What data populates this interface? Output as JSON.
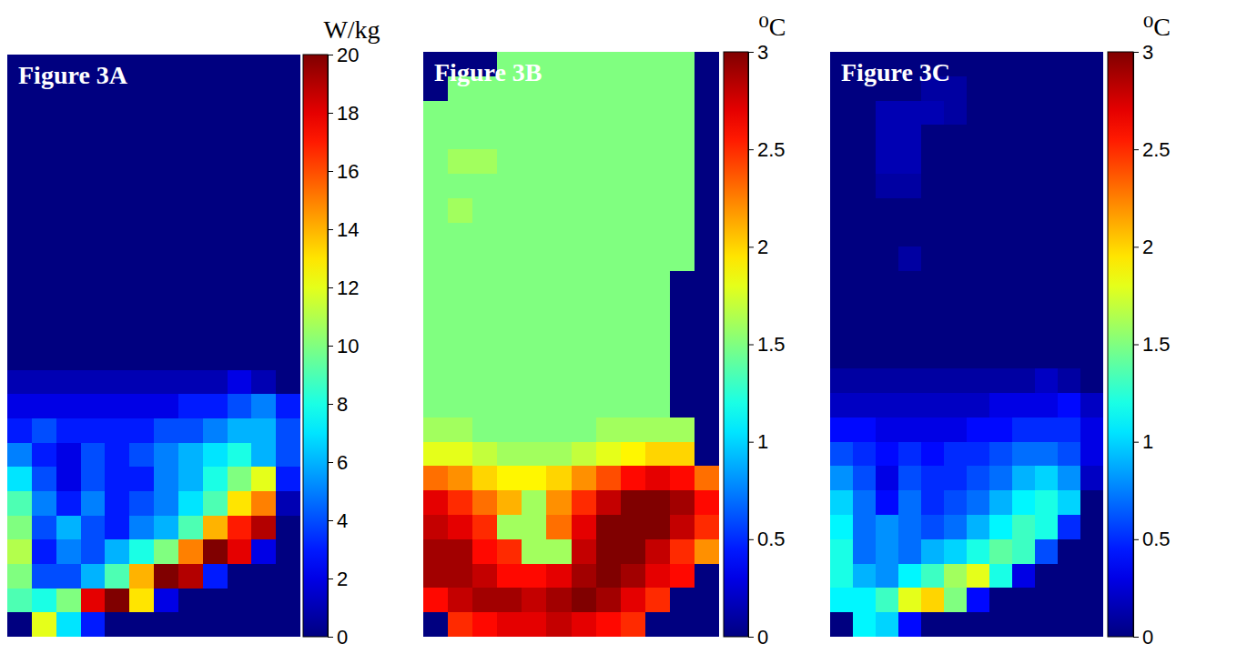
{
  "chart_data": [
    {
      "type": "heatmap",
      "title": "Figure 3A",
      "colorbar": {
        "title": "W/kg",
        "range": [
          0,
          20
        ],
        "ticks": [
          0,
          2,
          4,
          6,
          8,
          10,
          12,
          14,
          16,
          18,
          20
        ]
      },
      "cells": [
        [
          0,
          0,
          0,
          0,
          0,
          0,
          0,
          0,
          0,
          0,
          0,
          0
        ],
        [
          0,
          0,
          0,
          0,
          0,
          0,
          0,
          0,
          0,
          0,
          0,
          0
        ],
        [
          0,
          0,
          0,
          0,
          0,
          0,
          0,
          0,
          0,
          0,
          0,
          0
        ],
        [
          0,
          0,
          0,
          0,
          0,
          0,
          0,
          0,
          0,
          0,
          0,
          0
        ],
        [
          0,
          0,
          0,
          0,
          0,
          0,
          0,
          0,
          0,
          0,
          0,
          0
        ],
        [
          0,
          0,
          0,
          0,
          0,
          0,
          0,
          0,
          0,
          0,
          0,
          0
        ],
        [
          0,
          0,
          0,
          0,
          0,
          0,
          0,
          0,
          0,
          0,
          0,
          0
        ],
        [
          0,
          0,
          0,
          0,
          0,
          0,
          0,
          0,
          0,
          0,
          0,
          0
        ],
        [
          0,
          0,
          0,
          0,
          0,
          0,
          0,
          0,
          0,
          0,
          0,
          0
        ],
        [
          0,
          0,
          0,
          0,
          0,
          0,
          0,
          0,
          0,
          0,
          0,
          0
        ],
        [
          0,
          0,
          0,
          0,
          0,
          0,
          0,
          0,
          0,
          0,
          0,
          0
        ],
        [
          0,
          0,
          0,
          0,
          0,
          0,
          0,
          0,
          0,
          0,
          0,
          0
        ],
        [
          0,
          0,
          0,
          0,
          0,
          0,
          0,
          0,
          0,
          0,
          0,
          0
        ],
        [
          1,
          1,
          1,
          1,
          1,
          1,
          1,
          1,
          1,
          2,
          1,
          0
        ],
        [
          2,
          2,
          2,
          2,
          2,
          2,
          2,
          3,
          3,
          4,
          5,
          3
        ],
        [
          3,
          4,
          3,
          3,
          3,
          3,
          4,
          4,
          5,
          6,
          6,
          4
        ],
        [
          5,
          3,
          2,
          4,
          3,
          4,
          5,
          6,
          7,
          8,
          6,
          4
        ],
        [
          7,
          4,
          2,
          4,
          3,
          3,
          5,
          6,
          8,
          10,
          12,
          3
        ],
        [
          9,
          5,
          3,
          5,
          3,
          4,
          5,
          7,
          9,
          13,
          15,
          1
        ],
        [
          10,
          4,
          6,
          4,
          3,
          5,
          6,
          9,
          14,
          17,
          19,
          0
        ],
        [
          11,
          3,
          5,
          4,
          6,
          8,
          10,
          15,
          20,
          18,
          2,
          0
        ],
        [
          10,
          4,
          4,
          6,
          9,
          14,
          20,
          19,
          3,
          0,
          0,
          0
        ],
        [
          9,
          8,
          10,
          18,
          20,
          13,
          2,
          0,
          0,
          0,
          0,
          0
        ],
        [
          0,
          12,
          7,
          3,
          0,
          0,
          0,
          0,
          0,
          0,
          0,
          0
        ]
      ]
    },
    {
      "type": "heatmap",
      "title": "Figure 3B",
      "colorbar": {
        "title": "⁰C",
        "range": [
          0,
          3
        ],
        "ticks": [
          0,
          0.5,
          1,
          1.5,
          2,
          2.5,
          3
        ]
      },
      "cells": [
        [
          0,
          0,
          0,
          1.5,
          1.5,
          1.5,
          1.5,
          1.5,
          1.5,
          1.5,
          1.5,
          0
        ],
        [
          0,
          1.5,
          1.5,
          1.5,
          1.5,
          1.5,
          1.5,
          1.5,
          1.5,
          1.5,
          1.5,
          0
        ],
        [
          1.5,
          1.5,
          1.5,
          1.5,
          1.5,
          1.5,
          1.5,
          1.5,
          1.5,
          1.5,
          1.5,
          0
        ],
        [
          1.5,
          1.5,
          1.5,
          1.5,
          1.5,
          1.5,
          1.5,
          1.5,
          1.5,
          1.5,
          1.5,
          0
        ],
        [
          1.5,
          1.6,
          1.6,
          1.5,
          1.5,
          1.5,
          1.5,
          1.5,
          1.5,
          1.5,
          1.5,
          0
        ],
        [
          1.5,
          1.5,
          1.5,
          1.5,
          1.5,
          1.5,
          1.5,
          1.5,
          1.5,
          1.5,
          1.5,
          0
        ],
        [
          1.5,
          1.6,
          1.5,
          1.5,
          1.5,
          1.5,
          1.5,
          1.5,
          1.5,
          1.5,
          1.5,
          0
        ],
        [
          1.5,
          1.5,
          1.5,
          1.5,
          1.5,
          1.5,
          1.5,
          1.5,
          1.5,
          1.5,
          1.5,
          0
        ],
        [
          1.5,
          1.5,
          1.5,
          1.5,
          1.5,
          1.5,
          1.5,
          1.5,
          1.5,
          1.5,
          1.5,
          0
        ],
        [
          1.5,
          1.5,
          1.5,
          1.5,
          1.5,
          1.5,
          1.5,
          1.5,
          1.5,
          1.5,
          0,
          0
        ],
        [
          1.5,
          1.5,
          1.5,
          1.5,
          1.5,
          1.5,
          1.5,
          1.5,
          1.5,
          1.5,
          0,
          0
        ],
        [
          1.5,
          1.5,
          1.5,
          1.5,
          1.5,
          1.5,
          1.5,
          1.5,
          1.5,
          1.5,
          0,
          0
        ],
        [
          1.5,
          1.5,
          1.5,
          1.5,
          1.5,
          1.5,
          1.5,
          1.5,
          1.5,
          1.5,
          0,
          0
        ],
        [
          1.5,
          1.5,
          1.5,
          1.5,
          1.5,
          1.5,
          1.5,
          1.5,
          1.5,
          1.5,
          0,
          0
        ],
        [
          1.5,
          1.5,
          1.5,
          1.5,
          1.5,
          1.5,
          1.5,
          1.5,
          1.5,
          1.5,
          0,
          0
        ],
        [
          1.6,
          1.6,
          1.5,
          1.5,
          1.5,
          1.5,
          1.5,
          1.6,
          1.6,
          1.6,
          1.6,
          0
        ],
        [
          1.8,
          1.8,
          1.7,
          1.6,
          1.6,
          1.6,
          1.7,
          1.8,
          1.9,
          2.0,
          2.0,
          0
        ],
        [
          2.3,
          2.2,
          2.0,
          1.9,
          1.9,
          2.0,
          2.2,
          2.4,
          2.6,
          2.7,
          2.6,
          2.3
        ],
        [
          2.7,
          2.5,
          2.3,
          2.1,
          1.6,
          2.2,
          2.5,
          2.8,
          3.0,
          3.0,
          2.9,
          2.6
        ],
        [
          2.8,
          2.7,
          2.5,
          1.6,
          1.6,
          2.3,
          2.7,
          3.0,
          3.0,
          3.0,
          2.8,
          2.5
        ],
        [
          2.9,
          2.9,
          2.6,
          2.5,
          1.6,
          1.6,
          2.8,
          3.0,
          3.0,
          2.8,
          2.5,
          2.2
        ],
        [
          2.9,
          2.9,
          2.8,
          2.6,
          2.6,
          2.7,
          2.9,
          3.0,
          2.9,
          2.7,
          2.6,
          0
        ],
        [
          2.6,
          2.8,
          2.9,
          2.9,
          2.8,
          2.9,
          3.0,
          2.9,
          2.7,
          2.5,
          0,
          0
        ],
        [
          0,
          2.5,
          2.6,
          2.7,
          2.7,
          2.8,
          2.7,
          2.6,
          2.5,
          0,
          0,
          0
        ]
      ]
    },
    {
      "type": "heatmap",
      "title": "Figure 3C",
      "colorbar": {
        "title": "⁰C",
        "range": [
          0,
          3
        ],
        "ticks": [
          0,
          0.5,
          1,
          1.5,
          2,
          2.5,
          3
        ]
      },
      "cells": [
        [
          0,
          0,
          0,
          0,
          0,
          0,
          0,
          0,
          0,
          0,
          0,
          0
        ],
        [
          0,
          0,
          0,
          0,
          0.1,
          0.1,
          0,
          0,
          0,
          0,
          0,
          0
        ],
        [
          0,
          0,
          0.15,
          0.15,
          0.15,
          0.1,
          0,
          0,
          0,
          0,
          0,
          0
        ],
        [
          0,
          0,
          0.15,
          0.15,
          0,
          0,
          0,
          0,
          0,
          0,
          0,
          0
        ],
        [
          0,
          0,
          0.15,
          0.15,
          0,
          0,
          0,
          0,
          0,
          0,
          0,
          0
        ],
        [
          0,
          0,
          0.1,
          0.1,
          0,
          0,
          0,
          0,
          0,
          0,
          0,
          0
        ],
        [
          0,
          0,
          0,
          0,
          0,
          0,
          0,
          0,
          0,
          0,
          0,
          0
        ],
        [
          0,
          0,
          0,
          0,
          0,
          0,
          0,
          0,
          0,
          0,
          0,
          0
        ],
        [
          0,
          0,
          0,
          0.1,
          0,
          0,
          0,
          0,
          0,
          0,
          0,
          0
        ],
        [
          0,
          0,
          0,
          0,
          0,
          0,
          0,
          0,
          0,
          0,
          0,
          0
        ],
        [
          0,
          0,
          0,
          0,
          0,
          0,
          0,
          0,
          0,
          0,
          0,
          0
        ],
        [
          0,
          0,
          0,
          0,
          0,
          0,
          0,
          0,
          0,
          0,
          0,
          0
        ],
        [
          0,
          0,
          0,
          0,
          0,
          0,
          0,
          0,
          0,
          0,
          0,
          0
        ],
        [
          0.1,
          0.1,
          0.1,
          0.1,
          0.1,
          0.1,
          0.1,
          0.1,
          0.1,
          0.2,
          0.1,
          0
        ],
        [
          0.2,
          0.2,
          0.2,
          0.2,
          0.2,
          0.2,
          0.2,
          0.3,
          0.3,
          0.3,
          0.4,
          0.2
        ],
        [
          0.4,
          0.4,
          0.3,
          0.3,
          0.3,
          0.3,
          0.4,
          0.4,
          0.5,
          0.5,
          0.5,
          0.3
        ],
        [
          0.6,
          0.5,
          0.4,
          0.5,
          0.4,
          0.5,
          0.5,
          0.6,
          0.7,
          0.7,
          0.6,
          0.3
        ],
        [
          0.8,
          0.6,
          0.3,
          0.6,
          0.5,
          0.5,
          0.6,
          0.7,
          0.9,
          1.0,
          0.8,
          0.2
        ],
        [
          1.0,
          0.7,
          0.4,
          0.7,
          0.5,
          0.6,
          0.7,
          0.9,
          1.1,
          1.2,
          1.0,
          0
        ],
        [
          1.1,
          0.7,
          0.8,
          0.7,
          0.6,
          0.7,
          0.9,
          1.1,
          1.3,
          1.2,
          0.5,
          0
        ],
        [
          1.2,
          0.7,
          0.8,
          0.7,
          0.9,
          1.0,
          1.2,
          1.4,
          1.3,
          0.6,
          0,
          0
        ],
        [
          1.2,
          0.9,
          0.8,
          1.1,
          1.3,
          1.6,
          1.8,
          1.2,
          0.3,
          0,
          0,
          0
        ],
        [
          1.1,
          1.1,
          1.3,
          1.8,
          2.0,
          1.5,
          0.4,
          0,
          0,
          0,
          0,
          0
        ],
        [
          0,
          1.1,
          1.0,
          0.4,
          0,
          0,
          0,
          0,
          0,
          0,
          0,
          0
        ]
      ]
    }
  ]
}
